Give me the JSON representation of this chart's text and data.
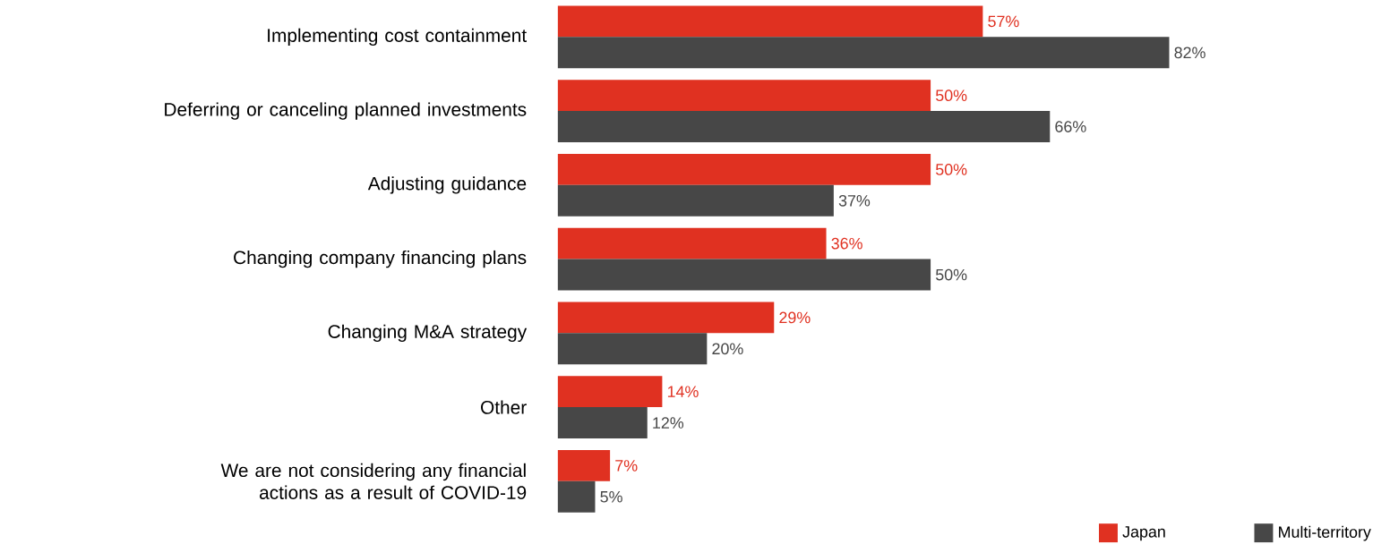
{
  "chart_data": {
    "type": "bar",
    "orientation": "horizontal",
    "categories": [
      "Implementing cost containment",
      "Deferring or canceling planned investments",
      "Adjusting guidance",
      "Changing company financing plans",
      "Changing M&A strategy",
      "Other",
      "We are not considering any financial actions as a result of COVID-19"
    ],
    "series": [
      {
        "name": "Japan",
        "color": "#e03121",
        "values": [
          57,
          50,
          50,
          36,
          29,
          14,
          7
        ],
        "value_labels": [
          "57%",
          "50%",
          "50%",
          "36%",
          "29%",
          "14%",
          "7%"
        ]
      },
      {
        "name": "Multi-territory",
        "color": "#474747",
        "values": [
          82,
          66,
          37,
          50,
          20,
          12,
          5
        ],
        "value_labels": [
          "82%",
          "66%",
          "37%",
          "50%",
          "20%",
          "12%",
          "5%"
        ]
      }
    ],
    "tick_labels": "y",
    "legend": "bottom right"
  }
}
